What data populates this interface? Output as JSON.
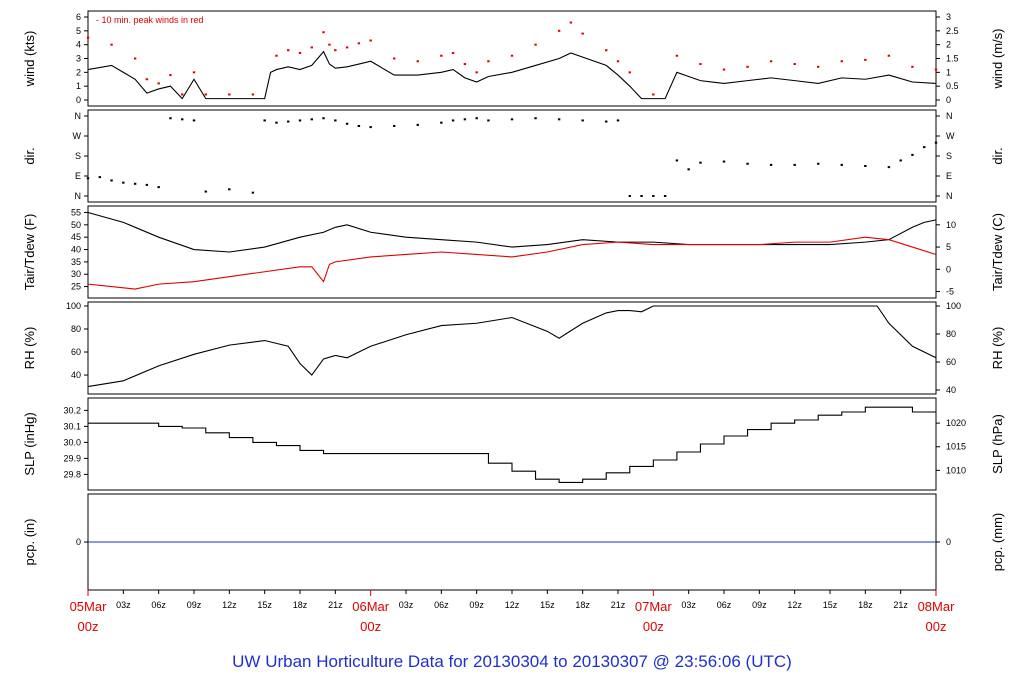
{
  "chart_data": {
    "type": "line",
    "title": "UW Urban Horticulture Data for 20130304  to  20130307 @ 23:56:06  (UTC)",
    "x_axis": {
      "unit": "hours since 05Mar 00z",
      "range": [
        0,
        72
      ],
      "tick_labels": [
        "03z",
        "06z",
        "09z",
        "12z",
        "15z",
        "18z",
        "21z",
        "03z",
        "06z",
        "09z",
        "12z",
        "15z",
        "18z",
        "21z",
        "03z",
        "06z",
        "09z",
        "12z",
        "15z",
        "18z",
        "21z"
      ],
      "day_labels": [
        {
          "top": "05Mar",
          "bottom": "00z"
        },
        {
          "top": "06Mar",
          "bottom": "00z"
        },
        {
          "top": "07Mar",
          "bottom": "00z"
        },
        {
          "top": "08Mar",
          "bottom": "00z"
        }
      ]
    },
    "panels": [
      {
        "id": "wind",
        "ylabel_left": "wind (kts)",
        "ylabel_right": "wind (m/s)",
        "ylim": [
          0,
          6
        ],
        "left_ticks": [
          "0",
          "1",
          "2",
          "3",
          "4",
          "5",
          "6"
        ],
        "right_ticks": [
          "0",
          "0.5",
          "1",
          "1.5",
          "2",
          "2.5",
          "3"
        ],
        "legend": "10 min. peak winds in red",
        "series": [
          {
            "name": "wind",
            "color": "#000000",
            "x": [
              0,
              2,
              4,
              5,
              6,
              7,
              8,
              9,
              10,
              12,
              14,
              15,
              15.5,
              16,
              17,
              18,
              19,
              20,
              20.5,
              21,
              22,
              23,
              24,
              26,
              28,
              30,
              31,
              32,
              33,
              34,
              36,
              38,
              40,
              41,
              42,
              44,
              45,
              46,
              47,
              48,
              49,
              50,
              51,
              52,
              53,
              54,
              56,
              58,
              60,
              62,
              64,
              66,
              68,
              70,
              72
            ],
            "y": [
              2.2,
              2.5,
              1.5,
              0.5,
              0.8,
              1,
              0.1,
              1.5,
              0.1,
              0.1,
              0.1,
              0.1,
              2,
              2.2,
              2.4,
              2.2,
              2.5,
              3.5,
              2.6,
              2.3,
              2.4,
              2.6,
              2.8,
              1.8,
              1.8,
              2,
              2.2,
              1.6,
              1.3,
              1.7,
              2,
              2.5,
              3,
              3.4,
              3.1,
              2.5,
              1.8,
              1,
              0.1,
              0.1,
              0.1,
              2,
              1.7,
              1.4,
              1.3,
              1.2,
              1.4,
              1.6,
              1.4,
              1.2,
              1.6,
              1.5,
              1.8,
              1.3,
              1.2
            ]
          },
          {
            "name": "10 min. peak winds",
            "color": "#e00000",
            "x": [
              0,
              2,
              4,
              5,
              6,
              7,
              8,
              9,
              10,
              12,
              14,
              16,
              17,
              18,
              19,
              20,
              20.5,
              21,
              22,
              23,
              24,
              26,
              28,
              30,
              31,
              32,
              33,
              34,
              36,
              38,
              40,
              41,
              42,
              44,
              45,
              46,
              48,
              50,
              52,
              54,
              56,
              58,
              60,
              62,
              64,
              66,
              68,
              70,
              72
            ],
            "y": [
              4.5,
              4,
              3,
              1.5,
              1.2,
              1.8,
              0.4,
              2,
              0.4,
              0.4,
              0.4,
              3.2,
              3.6,
              3.4,
              3.8,
              4.9,
              4,
              3.6,
              3.8,
              4.1,
              4.3,
              3,
              2.8,
              3.2,
              3.4,
              2.6,
              2,
              2.8,
              3.2,
              4,
              5,
              5.6,
              4.8,
              3.6,
              2.8,
              2,
              0.4,
              3.2,
              2.6,
              2.2,
              2.4,
              2.8,
              2.6,
              2.4,
              2.8,
              2.9,
              3.2,
              2.4,
              2.2
            ]
          }
        ]
      },
      {
        "id": "dir",
        "ylabel_left": "dir.",
        "ylabel_right": "dir.",
        "ylim": [
          0,
          360
        ],
        "left_ticks": [
          "N",
          "E",
          "S",
          "W",
          "N"
        ],
        "right_ticks": [
          "N",
          "E",
          "S",
          "W",
          "N"
        ],
        "series": [
          {
            "name": "direction",
            "color": "#000000",
            "x": [
              0,
              1,
              2,
              3,
              4,
              5,
              6,
              7,
              8,
              9,
              10,
              12,
              14,
              15,
              16,
              17,
              18,
              19,
              20,
              21,
              22,
              23,
              24,
              26,
              28,
              30,
              31,
              32,
              33,
              34,
              36,
              38,
              40,
              42,
              44,
              45,
              46,
              47,
              48,
              49,
              50,
              51,
              52,
              54,
              56,
              58,
              60,
              62,
              64,
              66,
              68,
              69,
              70,
              71,
              72
            ],
            "y": [
              80,
              85,
              70,
              60,
              55,
              50,
              40,
              350,
              345,
              340,
              20,
              30,
              15,
              340,
              330,
              335,
              340,
              345,
              350,
              340,
              325,
              315,
              310,
              315,
              320,
              330,
              340,
              345,
              350,
              340,
              345,
              350,
              345,
              340,
              335,
              340,
              0,
              0,
              0,
              0,
              160,
              120,
              150,
              155,
              145,
              140,
              140,
              145,
              140,
              135,
              130,
              160,
              185,
              220,
              240
            ]
          }
        ]
      },
      {
        "id": "temp",
        "ylabel_left": "Tair/Tdew (F)",
        "ylabel_right": "Tair/Tdew (C)",
        "ylim": [
          22,
          56
        ],
        "left_ticks": [
          "25",
          "30",
          "35",
          "40",
          "45",
          "50",
          "55"
        ],
        "right_ticks": [
          "-5",
          "0",
          "5",
          "10"
        ],
        "series": [
          {
            "name": "Tair",
            "color": "#000000",
            "x": [
              0,
              3,
              6,
              9,
              12,
              15,
              18,
              20,
              21,
              22,
              24,
              27,
              30,
              33,
              36,
              39,
              42,
              45,
              48,
              51,
              54,
              57,
              60,
              63,
              66,
              68,
              70,
              71,
              72
            ],
            "y": [
              55,
              51,
              45,
              40,
              39,
              41,
              45,
              47,
              49,
              50,
              47,
              45,
              44,
              43,
              41,
              42,
              44,
              43,
              43,
              42,
              42,
              42,
              42,
              42,
              43,
              44,
              49,
              51,
              52
            ]
          },
          {
            "name": "Tdew",
            "color": "#e00000",
            "x": [
              0,
              2,
              4,
              6,
              9,
              12,
              15,
              18,
              19,
              20,
              20.5,
              21,
              24,
              27,
              30,
              33,
              36,
              39,
              42,
              45,
              48,
              51,
              54,
              57,
              60,
              63,
              66,
              68,
              70,
              72
            ],
            "y": [
              26,
              25,
              24,
              26,
              27,
              29,
              31,
              33,
              33,
              27,
              34,
              35,
              37,
              38,
              39,
              38,
              37,
              39,
              42,
              43,
              42,
              42,
              42,
              42,
              43,
              43,
              45,
              44,
              41,
              38
            ]
          }
        ]
      },
      {
        "id": "rh",
        "ylabel_left": "RH (%)",
        "ylabel_right": "RH (%)",
        "ylim": [
          27,
          100
        ],
        "left_ticks": [
          "40",
          "60",
          "80",
          "100"
        ],
        "right_ticks": [
          "40",
          "60",
          "80",
          "100"
        ],
        "series": [
          {
            "name": "RH",
            "color": "#000000",
            "x": [
              0,
              3,
              6,
              9,
              12,
              15,
              17,
              18,
              19,
              20,
              21,
              22,
              24,
              27,
              30,
              33,
              36,
              38,
              39,
              40,
              42,
              44,
              45,
              46,
              47,
              48,
              51,
              54,
              57,
              60,
              63,
              66,
              67,
              68,
              70,
              72
            ],
            "y": [
              30,
              35,
              48,
              58,
              66,
              70,
              65,
              50,
              40,
              54,
              57,
              55,
              65,
              75,
              83,
              85,
              90,
              82,
              78,
              72,
              85,
              94,
              96,
              96,
              95,
              100,
              100,
              100,
              100,
              100,
              100,
              100,
              100,
              85,
              65,
              55
            ]
          }
        ]
      },
      {
        "id": "slp",
        "ylabel_left": "SLP (inHg)",
        "ylabel_right": "SLP (hPa)",
        "ylim": [
          29.74,
          30.24
        ],
        "left_ticks": [
          "29.8",
          "29.9",
          "30.0",
          "30.1",
          "30.2"
        ],
        "right_ticks": [
          "1010",
          "1015",
          "1020"
        ],
        "series": [
          {
            "name": "SLP",
            "color": "#000000",
            "x": [
              0,
              4,
              6,
              8,
              10,
              12,
              14,
              16,
              18,
              20,
              22,
              24,
              30,
              34,
              36,
              38,
              40,
              42,
              44,
              46,
              48,
              50,
              52,
              54,
              56,
              58,
              60,
              62,
              64,
              66,
              68,
              70,
              72
            ],
            "y": [
              30.12,
              30.12,
              30.1,
              30.09,
              30.06,
              30.03,
              30.0,
              29.98,
              29.95,
              29.93,
              29.93,
              29.93,
              29.93,
              29.87,
              29.82,
              29.77,
              29.75,
              29.77,
              29.81,
              29.85,
              29.89,
              29.94,
              29.99,
              30.04,
              30.08,
              30.12,
              30.14,
              30.17,
              30.19,
              30.22,
              30.22,
              30.19,
              30.19
            ]
          }
        ]
      },
      {
        "id": "pcp",
        "ylabel_left": "pcp. (in)",
        "ylabel_right": "pcp. (mm)",
        "ylim": [
          -1,
          1
        ],
        "left_ticks": [
          "0"
        ],
        "right_ticks": [
          "0"
        ],
        "series": [
          {
            "name": "precipitation",
            "color": "#1f2fd0",
            "x": [
              0,
              72
            ],
            "y": [
              0,
              0
            ]
          }
        ]
      }
    ]
  }
}
